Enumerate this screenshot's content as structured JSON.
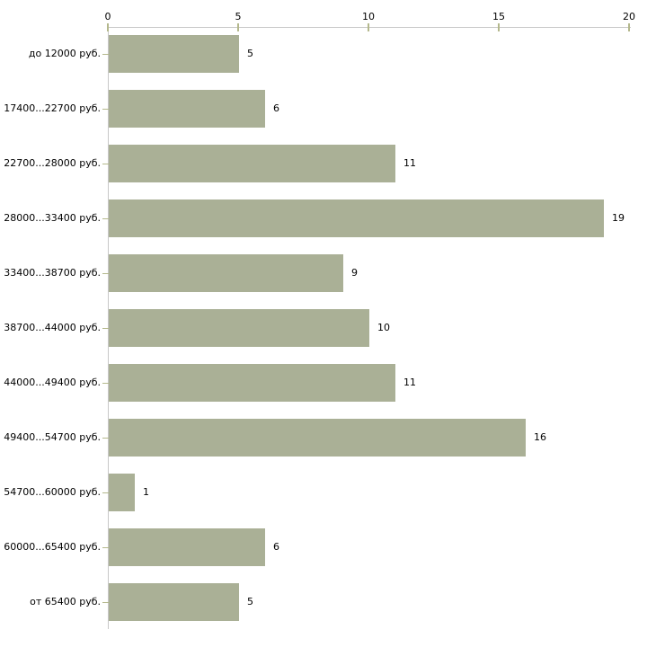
{
  "chart_data": {
    "type": "bar",
    "orientation": "horizontal",
    "title": "",
    "xlabel": "",
    "ylabel": "",
    "categories": [
      "до 12000 руб.",
      "17400...22700 руб.",
      "22700...28000 руб.",
      "28000...33400 руб.",
      "33400...38700 руб.",
      "38700...44000 руб.",
      "44000...49400 руб.",
      "49400...54700 руб.",
      "54700...60000 руб.",
      "60000...65400 руб.",
      "от 65400 руб."
    ],
    "values": [
      5,
      6,
      11,
      19,
      9,
      10,
      11,
      16,
      1,
      6,
      5
    ],
    "value_labels": [
      "5",
      "6",
      "11",
      "19",
      "9",
      "10",
      "11",
      "16",
      "1",
      "6",
      "5"
    ],
    "xlim": [
      0,
      20
    ],
    "x_ticks": [
      0,
      5,
      10,
      15,
      20
    ],
    "x_tick_labels": [
      "0",
      "5",
      "10",
      "15",
      "20"
    ],
    "axis_position": "top",
    "grid": false,
    "legend": false,
    "colors": {
      "bar": "#aab096",
      "axis_line": "#c8c8c8",
      "tick": "#b4b88c",
      "text": "#000000",
      "background": "#ffffff"
    }
  }
}
